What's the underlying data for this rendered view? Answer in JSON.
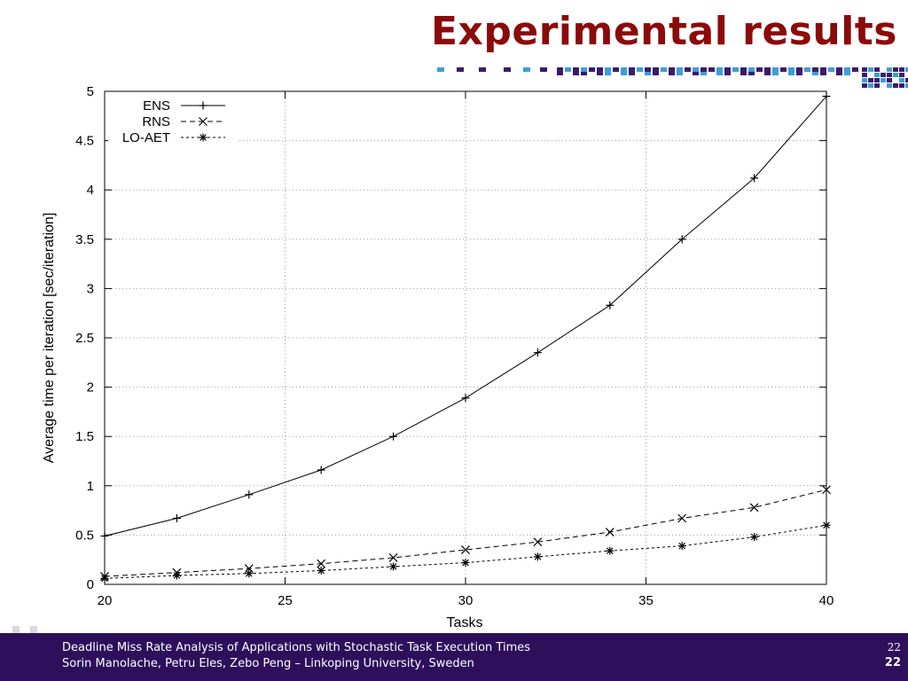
{
  "slide": {
    "title": "Experimental results",
    "footer_line1": "Deadline Miss Rate Analysis of Applications with Stochastic Task Execution Times",
    "footer_line2": "Sorin Manolache, Petru Eles, Zebo Peng – Linkoping University, Sweden",
    "page_number_top": "22",
    "page_number_bottom": "22"
  },
  "colors": {
    "title": "#8b0a0a",
    "footer_bg": "#2e0f5c",
    "deco_purple": "#3a1a6e",
    "deco_blue": "#3a9fd6",
    "deco_orange": "#e07a1f",
    "deco_red": "#c8282d"
  },
  "chart_data": {
    "type": "line",
    "xlabel": "Tasks",
    "ylabel": "Average time per iteration [sec/iteration]",
    "xlim": [
      20,
      40
    ],
    "ylim": [
      0,
      5
    ],
    "xticks": [
      20,
      25,
      30,
      35,
      40
    ],
    "yticks": [
      0,
      0.5,
      1,
      1.5,
      2,
      2.5,
      3,
      3.5,
      4,
      4.5,
      5
    ],
    "ytick_labels": [
      "0",
      "0.5",
      "1",
      "1.5",
      "2",
      "2.5",
      "3",
      "3.5",
      "4",
      "4.5",
      "5"
    ],
    "grid": true,
    "legend_position": "top-left",
    "x": [
      20,
      22,
      24,
      26,
      28,
      30,
      32,
      34,
      36,
      38,
      40
    ],
    "series": [
      {
        "name": "ENS",
        "marker": "plus",
        "dash": "solid",
        "values": [
          0.49,
          0.67,
          0.91,
          1.16,
          1.5,
          1.89,
          2.35,
          2.83,
          3.5,
          4.12,
          4.95
        ]
      },
      {
        "name": "RNS",
        "marker": "x",
        "dash": "dashed",
        "values": [
          0.08,
          0.12,
          0.16,
          0.21,
          0.27,
          0.35,
          0.43,
          0.53,
          0.67,
          0.78,
          0.96
        ]
      },
      {
        "name": "LO-AET",
        "marker": "star",
        "dash": "dotted",
        "values": [
          0.06,
          0.09,
          0.11,
          0.14,
          0.18,
          0.22,
          0.28,
          0.34,
          0.39,
          0.48,
          0.6
        ]
      }
    ]
  }
}
